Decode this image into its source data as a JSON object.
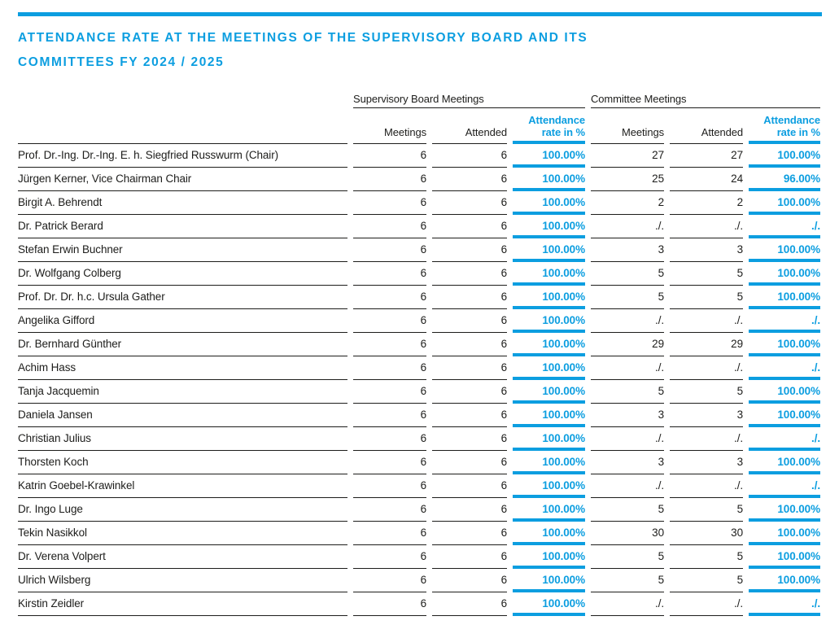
{
  "colors": {
    "accent": "#0C9EE0",
    "ink": "#1D1D1B"
  },
  "title": {
    "line1": "ATTENDANCE RATE AT THE MEETINGS OF THE SUPERVISORY BOARD AND ITS",
    "line2": "COMMITTEES FY 2024 / 2025"
  },
  "table": {
    "group1_label": "Supervisory Board Meetings",
    "group2_label": "Committee Meetings",
    "col_meetings": "Meetings",
    "col_attended": "Attended",
    "col_rate_line1": "Attendance",
    "col_rate_line2": "rate in %",
    "rows": [
      {
        "name": "Prof. Dr.-Ing. Dr.-Ing. E. h. Siegfried Russwurm (Chair)",
        "sb_meetings": "6",
        "sb_attended": "6",
        "sb_rate": "100.00%",
        "cm_meetings": "27",
        "cm_attended": "27",
        "cm_rate": "100.00%"
      },
      {
        "name": "Jürgen Kerner, Vice Chairman Chair",
        "sb_meetings": "6",
        "sb_attended": "6",
        "sb_rate": "100.00%",
        "cm_meetings": "25",
        "cm_attended": "24",
        "cm_rate": "96.00%"
      },
      {
        "name": "Birgit A. Behrendt",
        "sb_meetings": "6",
        "sb_attended": "6",
        "sb_rate": "100.00%",
        "cm_meetings": "2",
        "cm_attended": "2",
        "cm_rate": "100.00%"
      },
      {
        "name": "Dr. Patrick Berard",
        "sb_meetings": "6",
        "sb_attended": "6",
        "sb_rate": "100.00%",
        "cm_meetings": "./.",
        "cm_attended": "./.",
        "cm_rate": "./."
      },
      {
        "name": "Stefan Erwin Buchner",
        "sb_meetings": "6",
        "sb_attended": "6",
        "sb_rate": "100.00%",
        "cm_meetings": "3",
        "cm_attended": "3",
        "cm_rate": "100.00%"
      },
      {
        "name": "Dr. Wolfgang Colberg",
        "sb_meetings": "6",
        "sb_attended": "6",
        "sb_rate": "100.00%",
        "cm_meetings": "5",
        "cm_attended": "5",
        "cm_rate": "100.00%"
      },
      {
        "name": "Prof. Dr. Dr. h.c. Ursula Gather",
        "sb_meetings": "6",
        "sb_attended": "6",
        "sb_rate": "100.00%",
        "cm_meetings": "5",
        "cm_attended": "5",
        "cm_rate": "100.00%"
      },
      {
        "name": "Angelika Gifford",
        "sb_meetings": "6",
        "sb_attended": "6",
        "sb_rate": "100.00%",
        "cm_meetings": "./.",
        "cm_attended": "./.",
        "cm_rate": "./."
      },
      {
        "name": "Dr. Bernhard Günther",
        "sb_meetings": "6",
        "sb_attended": "6",
        "sb_rate": "100.00%",
        "cm_meetings": "29",
        "cm_attended": "29",
        "cm_rate": "100.00%"
      },
      {
        "name": "Achim Hass",
        "sb_meetings": "6",
        "sb_attended": "6",
        "sb_rate": "100.00%",
        "cm_meetings": "./.",
        "cm_attended": "./.",
        "cm_rate": "./."
      },
      {
        "name": "Tanja Jacquemin",
        "sb_meetings": "6",
        "sb_attended": "6",
        "sb_rate": "100.00%",
        "cm_meetings": "5",
        "cm_attended": "5",
        "cm_rate": "100.00%"
      },
      {
        "name": "Daniela Jansen",
        "sb_meetings": "6",
        "sb_attended": "6",
        "sb_rate": "100.00%",
        "cm_meetings": "3",
        "cm_attended": "3",
        "cm_rate": "100.00%"
      },
      {
        "name": "Christian Julius",
        "sb_meetings": "6",
        "sb_attended": "6",
        "sb_rate": "100.00%",
        "cm_meetings": "./.",
        "cm_attended": "./.",
        "cm_rate": "./."
      },
      {
        "name": "Thorsten Koch",
        "sb_meetings": "6",
        "sb_attended": "6",
        "sb_rate": "100.00%",
        "cm_meetings": "3",
        "cm_attended": "3",
        "cm_rate": "100.00%"
      },
      {
        "name": "Katrin Goebel-Krawinkel",
        "sb_meetings": "6",
        "sb_attended": "6",
        "sb_rate": "100.00%",
        "cm_meetings": "./.",
        "cm_attended": "./.",
        "cm_rate": "./."
      },
      {
        "name": "Dr. Ingo Luge",
        "sb_meetings": "6",
        "sb_attended": "6",
        "sb_rate": "100.00%",
        "cm_meetings": "5",
        "cm_attended": "5",
        "cm_rate": "100.00%"
      },
      {
        "name": "Tekin Nasikkol",
        "sb_meetings": "6",
        "sb_attended": "6",
        "sb_rate": "100.00%",
        "cm_meetings": "30",
        "cm_attended": "30",
        "cm_rate": "100.00%"
      },
      {
        "name": "Dr. Verena Volpert",
        "sb_meetings": "6",
        "sb_attended": "6",
        "sb_rate": "100.00%",
        "cm_meetings": "5",
        "cm_attended": "5",
        "cm_rate": "100.00%"
      },
      {
        "name": "Ulrich Wilsberg",
        "sb_meetings": "6",
        "sb_attended": "6",
        "sb_rate": "100.00%",
        "cm_meetings": "5",
        "cm_attended": "5",
        "cm_rate": "100.00%"
      },
      {
        "name": "Kirstin Zeidler",
        "sb_meetings": "6",
        "sb_attended": "6",
        "sb_rate": "100.00%",
        "cm_meetings": "./.",
        "cm_attended": "./.",
        "cm_rate": "./."
      }
    ]
  }
}
